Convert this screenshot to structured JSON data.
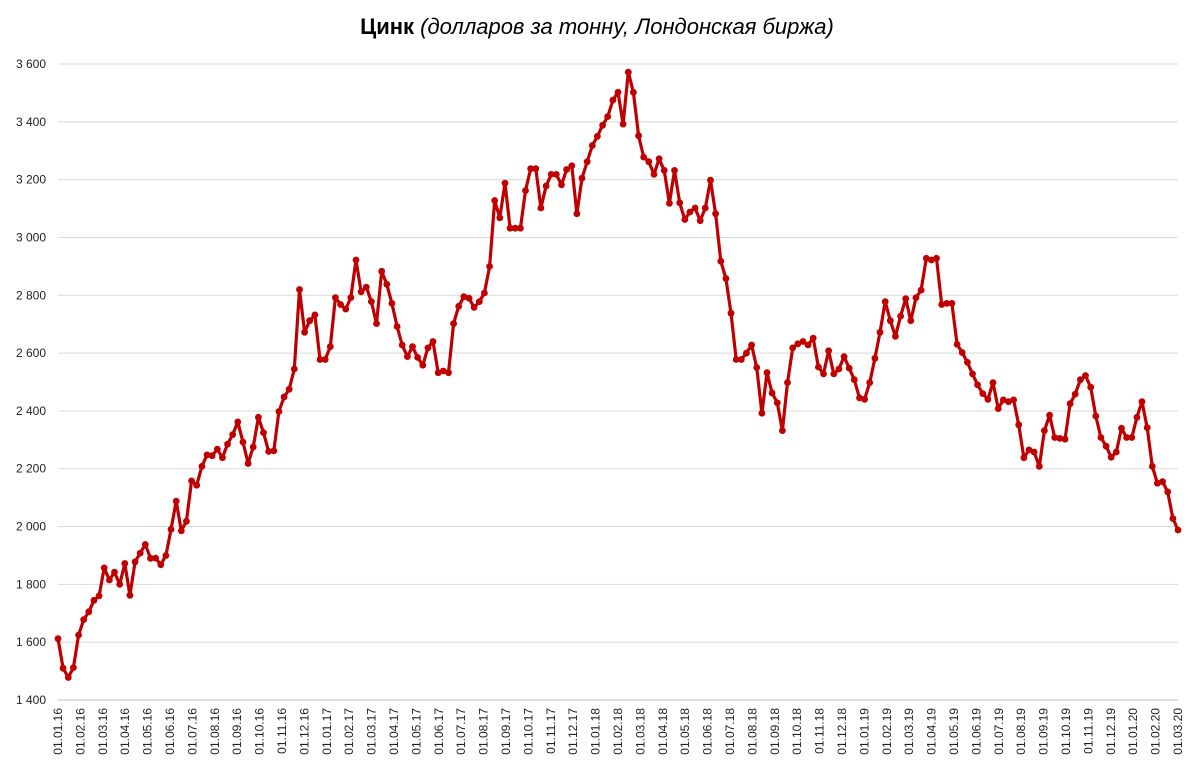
{
  "chart_data": {
    "type": "line",
    "title": "Цинк",
    "subtitle": "(долларов за тонну, Лондонская биржа)",
    "xlabel": "",
    "ylabel": "",
    "ylim": [
      1400,
      3600
    ],
    "yticks": [
      1400,
      1600,
      1800,
      2000,
      2200,
      2400,
      2600,
      2800,
      3000,
      3200,
      3400,
      3600
    ],
    "ytick_labels": [
      "1 400",
      "1 600",
      "1 800",
      "2 000",
      "2 200",
      "2 400",
      "2 600",
      "2 800",
      "3 000",
      "3 200",
      "3 400",
      "3 600"
    ],
    "x_tick_labels": [
      "01.01.16",
      "01.02.16",
      "01.03.16",
      "01.04.16",
      "01.05.16",
      "01.06.16",
      "01.07.16",
      "01.08.16",
      "01.09.16",
      "01.10.16",
      "01.11.16",
      "01.12.16",
      "01.01.17",
      "01.02.17",
      "01.03.17",
      "01.04.17",
      "01.05.17",
      "01.06.17",
      "01.07.17",
      "01.08.17",
      "01.09.17",
      "01.10.17",
      "01.11.17",
      "01.12.17",
      "01.01.18",
      "01.02.18",
      "01.03.18",
      "01.04.18",
      "01.05.18",
      "01.06.18",
      "01.07.18",
      "01.08.18",
      "01.09.18",
      "01.10.18",
      "01.11.18",
      "01.12.18",
      "01.01.19",
      "01.02.19",
      "01.03.19",
      "01.04.19",
      "01.05.19",
      "01.06.19",
      "01.07.19",
      "01.08.19",
      "01.09.19",
      "01.10.19",
      "01.11.19",
      "01.12.19",
      "01.01.20",
      "01.02.20",
      "01.03.20"
    ],
    "grid": true,
    "legend": "none",
    "line_color": "#C00000",
    "series": [
      {
        "values": [
          1612,
          1510,
          1478,
          1512,
          1625,
          1678,
          1705,
          1745,
          1760,
          1857,
          1815,
          1842,
          1800,
          1872,
          1762,
          1878,
          1908,
          1938,
          1890,
          1891,
          1868,
          1900,
          1990,
          2088,
          1985,
          2018,
          2158,
          2143,
          2208,
          2248,
          2245,
          2268,
          2238,
          2285,
          2318,
          2362,
          2292,
          2218,
          2275,
          2378,
          2325,
          2260,
          2262,
          2398,
          2448,
          2475,
          2545,
          2820,
          2672,
          2712,
          2732,
          2578,
          2578,
          2622,
          2792,
          2768,
          2752,
          2792,
          2922,
          2812,
          2828,
          2778,
          2702,
          2883,
          2838,
          2772,
          2692,
          2628,
          2588,
          2622,
          2585,
          2558,
          2618,
          2640,
          2532,
          2538,
          2532,
          2702,
          2762,
          2795,
          2790,
          2758,
          2778,
          2808,
          2900,
          3128,
          3068,
          3188,
          3032,
          3032,
          3032,
          3162,
          3238,
          3238,
          3102,
          3178,
          3218,
          3218,
          3182,
          3235,
          3248,
          3082,
          3205,
          3262,
          3318,
          3350,
          3388,
          3418,
          3475,
          3502,
          3392,
          3572,
          3502,
          3352,
          3278,
          3262,
          3218,
          3272,
          3232,
          3118,
          3232,
          3120,
          3062,
          3088,
          3102,
          3058,
          3102,
          3198,
          3082,
          2918,
          2858,
          2738,
          2578,
          2578,
          2600,
          2628,
          2550,
          2392,
          2532,
          2462,
          2428,
          2332,
          2498,
          2618,
          2632,
          2640,
          2628,
          2652,
          2552,
          2528,
          2608,
          2528,
          2545,
          2588,
          2548,
          2508,
          2445,
          2440,
          2498,
          2582,
          2672,
          2778,
          2712,
          2658,
          2728,
          2788,
          2712,
          2792,
          2818,
          2928,
          2922,
          2928,
          2768,
          2772,
          2772,
          2630,
          2602,
          2568,
          2528,
          2490,
          2460,
          2440,
          2498,
          2408,
          2438,
          2432,
          2438,
          2352,
          2238,
          2265,
          2258,
          2208,
          2332,
          2385,
          2308,
          2305,
          2302,
          2425,
          2458,
          2508,
          2522,
          2482,
          2382,
          2308,
          2278,
          2240,
          2258,
          2340,
          2308,
          2308,
          2378,
          2432,
          2342,
          2208,
          2150,
          2155,
          2120,
          2028,
          1988
        ]
      }
    ]
  }
}
